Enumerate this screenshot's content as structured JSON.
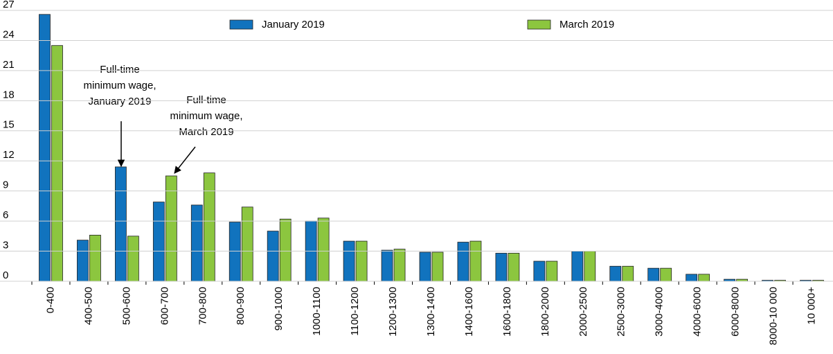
{
  "chart_data": {
    "type": "bar",
    "categories": [
      "0-400",
      "400-500",
      "500-600",
      "600-700",
      "700-800",
      "800-900",
      "900-1000",
      "1000-1100",
      "1100-1200",
      "1200-1300",
      "1300-1400",
      "1400-1600",
      "1600-1800",
      "1800-2000",
      "2000-2500",
      "2500-3000",
      "3000-4000",
      "4000-6000",
      "6000-8000",
      "8000-10 000",
      "10 000+"
    ],
    "series": [
      {
        "name": "January 2019",
        "color": "#1173be",
        "values": [
          26.6,
          4.1,
          11.4,
          7.9,
          7.6,
          5.9,
          5.0,
          6.0,
          4.0,
          3.1,
          2.9,
          3.9,
          2.8,
          2.0,
          3.0,
          1.5,
          1.3,
          0.7,
          0.2,
          0.1,
          0.1
        ]
      },
      {
        "name": "March 2019",
        "color": "#8cc63f",
        "values": [
          23.5,
          4.6,
          4.5,
          10.5,
          10.8,
          7.4,
          6.2,
          6.3,
          4.0,
          3.2,
          2.9,
          4.0,
          2.8,
          2.0,
          3.0,
          1.5,
          1.3,
          0.7,
          0.2,
          0.1,
          0.1
        ]
      }
    ],
    "ylim": [
      0,
      27
    ],
    "yticks": [
      0,
      3,
      6,
      9,
      12,
      15,
      18,
      21,
      24,
      27
    ],
    "grid": true,
    "legend": "top",
    "annotations": [
      {
        "lines": [
          "Full-time",
          "minimum wage,",
          "January 2019"
        ]
      },
      {
        "lines": [
          "Full-time",
          "minimum wage,",
          "March 2019"
        ]
      }
    ]
  }
}
